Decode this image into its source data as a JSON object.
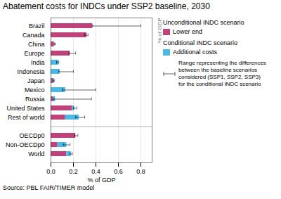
{
  "chart_data": {
    "type": "bar",
    "orientation": "horizontal",
    "stacked": true,
    "title": "Abatement costs for INDCs under SSP2 baseline, 2030",
    "xlabel": "% of GDP",
    "source": "Source: PBL FAIR/TIMER model",
    "annotations": [
      "% of GDP"
    ],
    "categories": [
      "Brazil",
      "Canada",
      "China",
      "Europe",
      "India",
      "Indonesia",
      "Japan",
      "Mexico",
      "Russia",
      "United States",
      "Rest of world",
      null,
      "OECDp0",
      "Non-OECDp0",
      "World"
    ],
    "series": [
      {
        "name": "Lower end",
        "group": "Unconditional INDC scenario",
        "color": "#c0427a",
        "values": [
          0.37,
          0.32,
          0.03,
          0.17,
          0.0,
          0.0,
          0.02,
          0.0,
          0.02,
          0.19,
          0.13,
          0.0,
          0.22,
          0.06,
          0.14
        ]
      },
      {
        "name": "Additional costs",
        "group": "Conditional INDC scenario",
        "color": "#4bb8e8",
        "values": [
          0.0,
          0.0,
          0.0,
          0.0,
          0.07,
          0.08,
          0.01,
          0.13,
          0.02,
          0.02,
          0.12,
          0.0,
          0.0,
          0.08,
          0.04
        ]
      }
    ],
    "error_label": "Range representing the differences\nbetween the baseline scenarios\nconsidered (SSP1, SSP2, SSP3)\nfor the conditional INDC scenario",
    "error_low": [
      0.37,
      0.3,
      0.03,
      0.16,
      0.05,
      0.07,
      0.02,
      0.1,
      0.02,
      0.2,
      0.22,
      null,
      0.21,
      0.11,
      0.17
    ],
    "error_high": [
      0.8,
      0.33,
      0.04,
      0.22,
      0.07,
      0.2,
      0.03,
      0.4,
      0.36,
      0.23,
      0.3,
      null,
      0.24,
      0.17,
      0.19
    ],
    "xlim": [
      0,
      0.9
    ],
    "xticks": [
      {
        "value": 0,
        "label": "0.0"
      },
      0.2,
      0.4,
      0.6,
      0.8
    ],
    "grid": true
  }
}
